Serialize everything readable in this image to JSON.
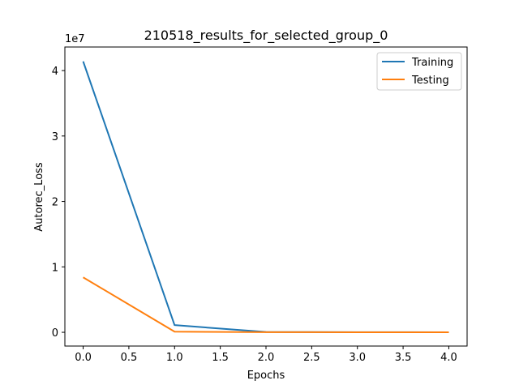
{
  "chart_data": {
    "type": "line",
    "title": "210518_results_for_selected_group_0",
    "xlabel": "Epochs",
    "ylabel": "Autorec_Loss",
    "y_exponent_label": "1e7",
    "x": [
      0,
      1,
      2,
      3,
      4
    ],
    "xlim": [
      -0.2,
      4.2
    ],
    "ylim": [
      -2100000,
      43600000
    ],
    "x_ticks": [
      0.0,
      0.5,
      1.0,
      1.5,
      2.0,
      2.5,
      3.0,
      3.5,
      4.0
    ],
    "x_tick_labels": [
      "0.0",
      "0.5",
      "1.0",
      "1.5",
      "2.0",
      "2.5",
      "3.0",
      "3.5",
      "4.0"
    ],
    "y_ticks": [
      0,
      10000000,
      20000000,
      30000000,
      40000000
    ],
    "y_tick_labels": [
      "0",
      "1",
      "2",
      "3",
      "4"
    ],
    "grid": false,
    "legend_position": "top-right",
    "series": [
      {
        "name": "Training",
        "color": "#1f77b4",
        "values": [
          41400000,
          1100000,
          50000,
          20000,
          10000
        ]
      },
      {
        "name": "Testing",
        "color": "#ff7f0e",
        "values": [
          8400000,
          100000,
          20000,
          10000,
          5000
        ]
      }
    ]
  }
}
